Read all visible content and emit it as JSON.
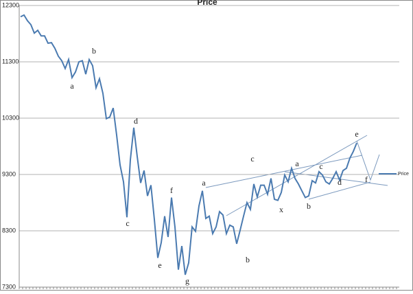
{
  "chart_data": {
    "type": "line",
    "title": "Price",
    "ylim": [
      7300,
      12300
    ],
    "yticks": [
      7300,
      8300,
      9300,
      10300,
      11300,
      12300
    ],
    "grid": true,
    "legend": "right",
    "series": [
      {
        "name": "Price",
        "color": "#4a7ab0",
        "values": [
          12100,
          12130,
          12030,
          11960,
          11810,
          11860,
          11760,
          11760,
          11630,
          11640,
          11540,
          11400,
          11320,
          11180,
          11340,
          11020,
          11120,
          11300,
          11320,
          11080,
          11340,
          11230,
          10840,
          11000,
          10740,
          10290,
          10320,
          10480,
          10000,
          9470,
          9170,
          8540,
          9560,
          10130,
          9620,
          9150,
          9370,
          8920,
          9110,
          8500,
          7820,
          8090,
          8560,
          8190,
          8890,
          8370,
          7610,
          8030,
          7520,
          7730,
          8370,
          8290,
          8740,
          9010,
          8520,
          8560,
          8250,
          8370,
          8640,
          8580,
          8250,
          8400,
          8370,
          8070,
          8310,
          8560,
          8800,
          8680,
          9130,
          8900,
          9110,
          9110,
          8950,
          9230,
          8860,
          8840,
          8980,
          9290,
          9170,
          9410,
          9230,
          9130,
          9010,
          8890,
          8920,
          9190,
          9150,
          9350,
          9290,
          9170,
          9130,
          9230,
          9350,
          9200,
          9370,
          9410,
          9590,
          9710,
          9860
        ]
      }
    ],
    "annotations": [
      "a",
      "b",
      "c",
      "d",
      "e",
      "f",
      "g",
      "a",
      "b",
      "c",
      "x",
      "a",
      "b",
      "c",
      "d",
      "e",
      "f"
    ]
  }
}
